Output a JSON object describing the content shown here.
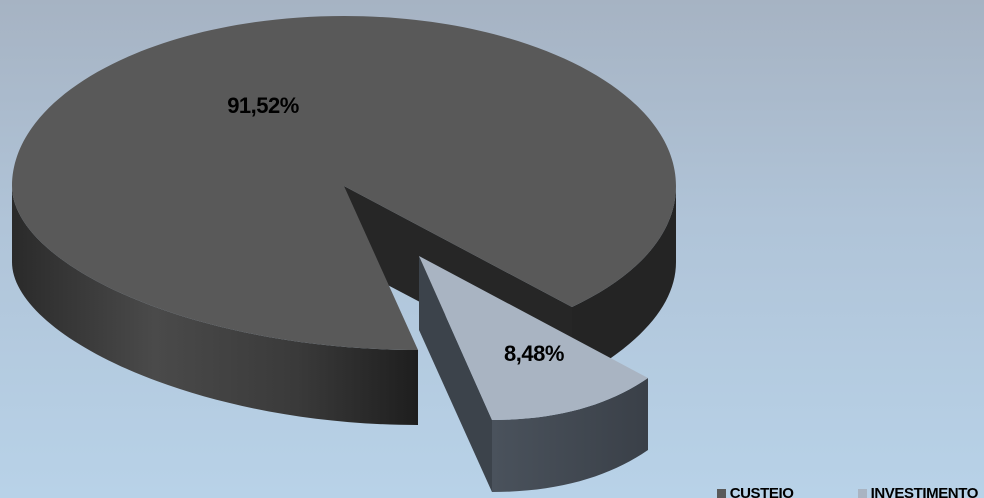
{
  "chart_data": {
    "type": "pie",
    "variant": "3d-exploded",
    "categories": [
      "CUSTEIO",
      "INVESTIMENTO"
    ],
    "values": [
      91.52,
      8.48
    ],
    "data_labels": [
      "91,52%",
      "8,48%"
    ],
    "legend_position": "bottom-right",
    "colors": {
      "CUSTEIO": "#595959",
      "INVESTIMENTO": "#a9b4c2"
    }
  }
}
